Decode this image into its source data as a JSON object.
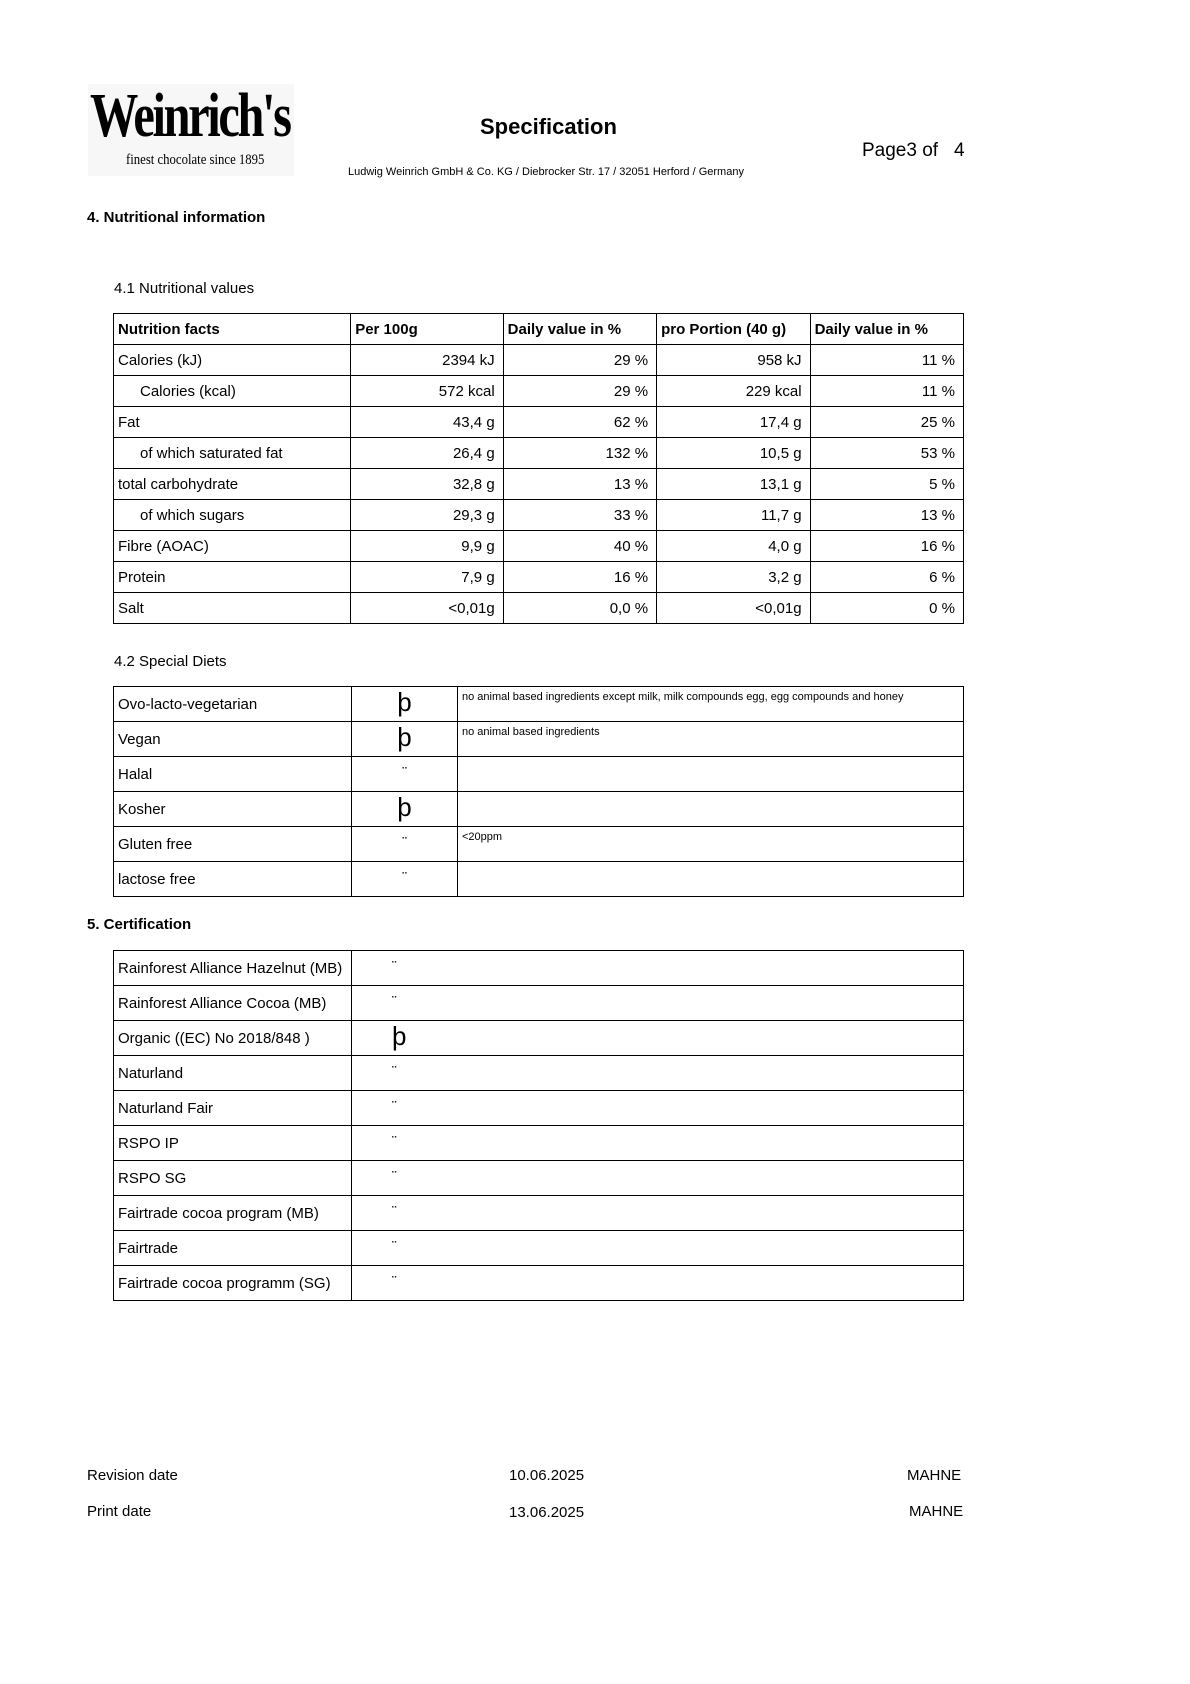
{
  "header": {
    "logo_text": "Weinrich's",
    "logo_tagline": "finest chocolate since 1895",
    "title": "Specification",
    "company": "Ludwig Weinrich GmbH & Co. KG / Diebrocker Str. 17 / 32051 Herford / Germany",
    "page_label": "Page",
    "page_current": "3",
    "page_of": "of",
    "page_total": "4"
  },
  "section4": {
    "title": "4. Nutritional information",
    "sub1": "4.1 Nutritional values",
    "columns": [
      "Nutrition facts",
      "Per 100g",
      "Daily value in %",
      "pro Portion (40 g)",
      "Daily value in %"
    ],
    "rows": [
      [
        "Calories (kJ)",
        "2394 kJ",
        "29 %",
        "958 kJ",
        "11 %"
      ],
      [
        "Calories (kcal)",
        "572 kcal",
        "29 %",
        "229 kcal",
        "11 %"
      ],
      [
        "Fat",
        "43,4 g",
        "62 %",
        "17,4 g",
        "25 %"
      ],
      [
        "of which saturated fat",
        "26,4 g",
        "132 %",
        "10,5 g",
        "53 %"
      ],
      [
        "total carbohydrate",
        "32,8 g",
        "13 %",
        "13,1 g",
        "5 %"
      ],
      [
        "of which sugars",
        "29,3 g",
        "33 %",
        "11,7 g",
        "13 %"
      ],
      [
        "Fibre (AOAC)",
        "9,9 g",
        "40 %",
        "4,0 g",
        "16 %"
      ],
      [
        "Protein",
        "7,9 g",
        "16 %",
        "3,2 g",
        "6 %"
      ],
      [
        "Salt",
        "<0,01g",
        "0,0 %",
        "<0,01g",
        "0 %"
      ]
    ],
    "sub2": "4.2 Special Diets",
    "diets": [
      {
        "label": "Ovo-lacto-vegetarian",
        "mark": "þ",
        "note": "no animal based ingredients except milk, milk compounds egg, egg compounds and honey"
      },
      {
        "label": "Vegan",
        "mark": "þ",
        "note": "no animal based ingredients"
      },
      {
        "label": "Halal",
        "mark": "¨",
        "note": ""
      },
      {
        "label": "Kosher",
        "mark": "þ",
        "note": ""
      },
      {
        "label": "Gluten free",
        "mark": "¨",
        "note": "<20ppm"
      },
      {
        "label": "lactose free",
        "mark": "¨",
        "note": ""
      }
    ]
  },
  "section5": {
    "title": "5. Certification",
    "rows": [
      {
        "label": "Rainforest Alliance Hazelnut (MB)",
        "mark": "¨"
      },
      {
        "label": "Rainforest Alliance Cocoa (MB)",
        "mark": "¨"
      },
      {
        "label": "Organic ((EC) No 2018/848 )",
        "mark": "þ"
      },
      {
        "label": "Naturland",
        "mark": "¨"
      },
      {
        "label": "Naturland Fair",
        "mark": "¨"
      },
      {
        "label": "RSPO IP",
        "mark": "¨"
      },
      {
        "label": "RSPO SG",
        "mark": "¨"
      },
      {
        "label": "Fairtrade cocoa program (MB)",
        "mark": "¨"
      },
      {
        "label": "Fairtrade",
        "mark": "¨"
      },
      {
        "label": "Fairtrade cocoa programm (SG)",
        "mark": "¨"
      }
    ]
  },
  "footer": {
    "revision_label": "Revision date",
    "revision_date": "10.06.2025",
    "revision_user": "MAHNE",
    "print_label": "Print date",
    "print_date": "13.06.2025",
    "print_user": "MAHNE"
  }
}
